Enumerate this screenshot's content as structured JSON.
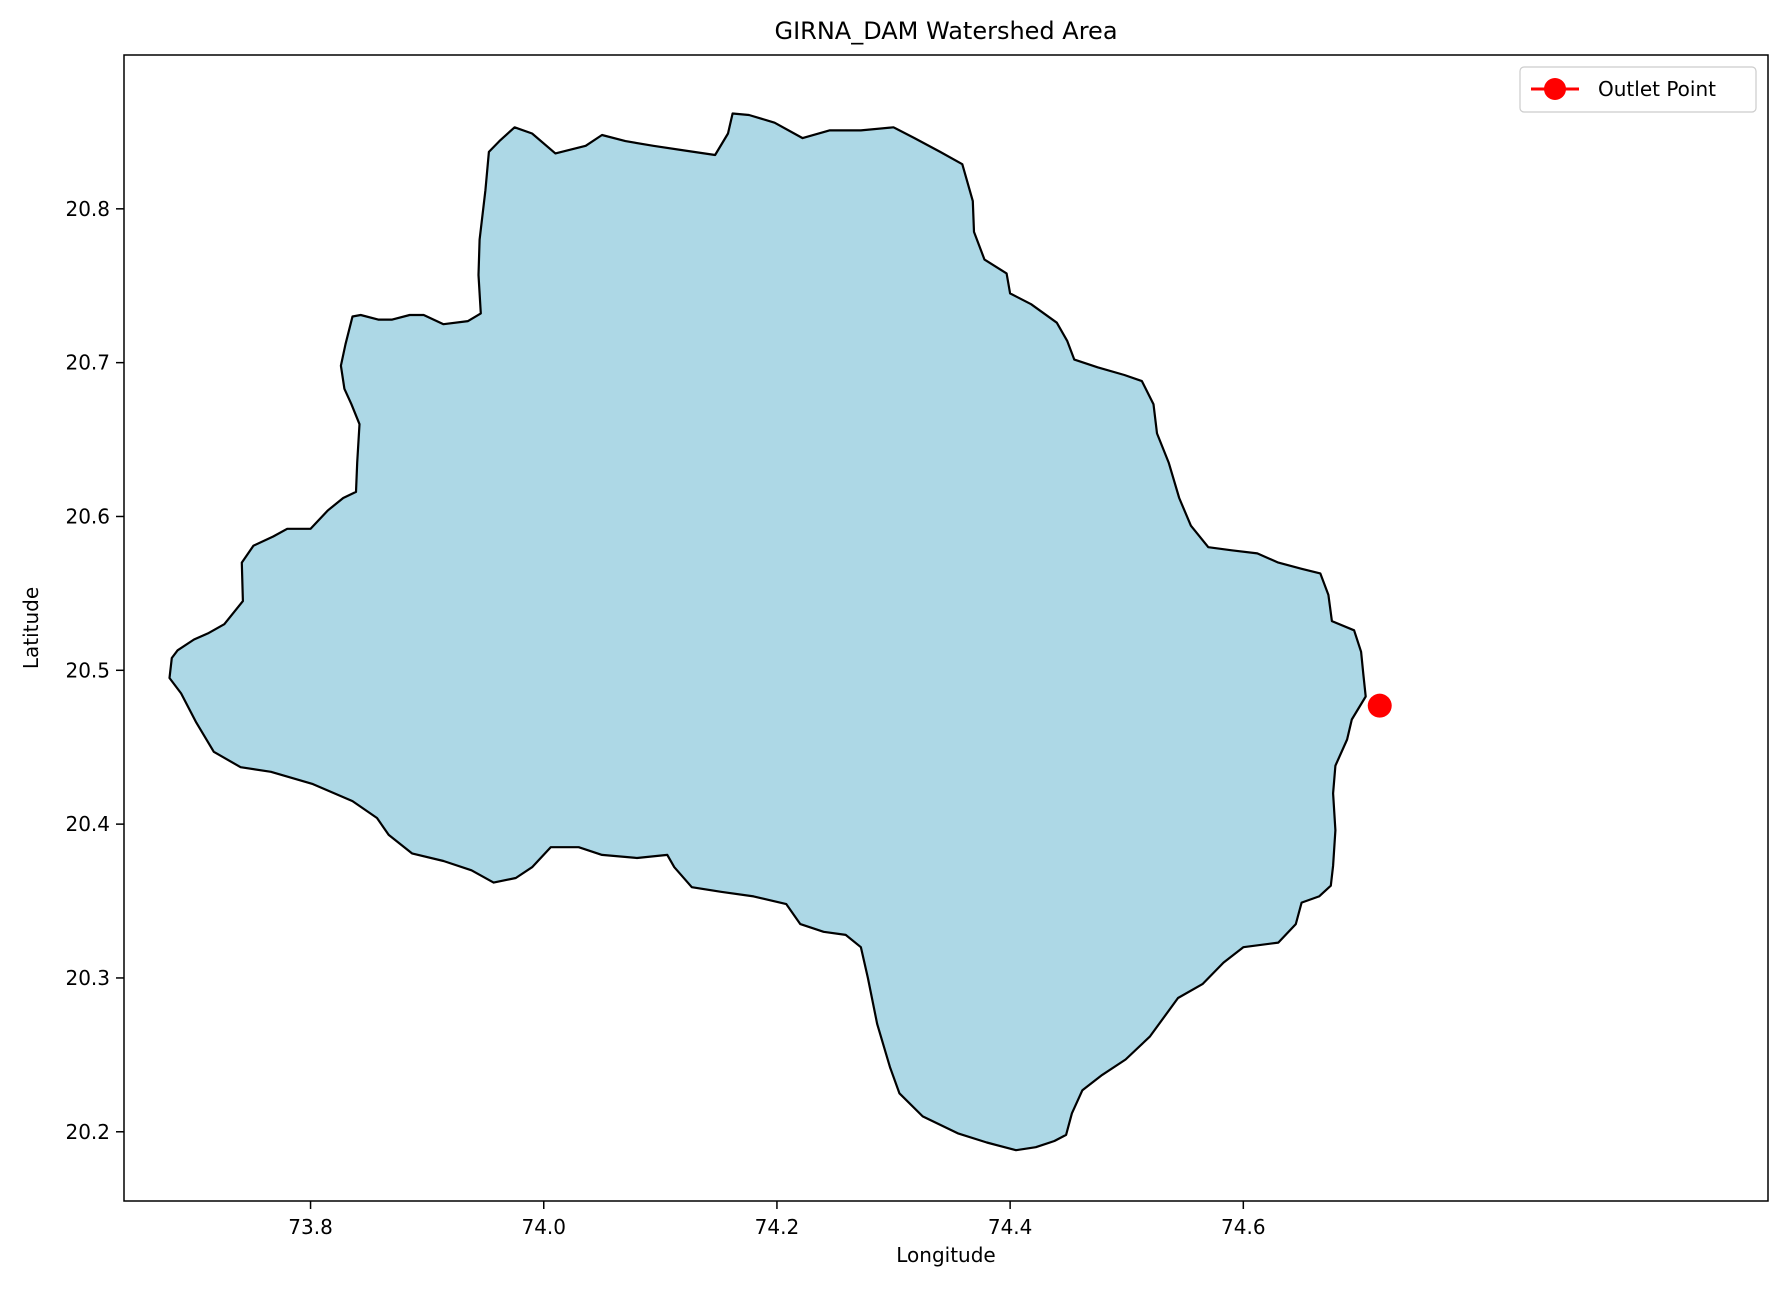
{
  "chart_data": {
    "type": "map",
    "title": "GIRNA_DAM Watershed Area",
    "xlabel": "Longitude",
    "ylabel": "Latitude",
    "xlim": [
      73.64,
      75.05
    ],
    "ylim": [
      20.155,
      20.9
    ],
    "xticks": [
      73.8,
      74.0,
      74.2,
      74.4,
      74.6
    ],
    "xtick_labels": [
      "73.8",
      "74.0",
      "74.2",
      "74.4",
      "74.6"
    ],
    "yticks": [
      20.2,
      20.3,
      20.4,
      20.5,
      20.6,
      20.7,
      20.8
    ],
    "ytick_labels": [
      "20.2",
      "20.3",
      "20.4",
      "20.5",
      "20.6",
      "20.7",
      "20.8"
    ],
    "grid": false,
    "legend_position": "upper right",
    "watershed": {
      "fill_color": "#add8e6",
      "edge_color": "#000000",
      "boundary": [
        [
          73.686,
          20.513
        ],
        [
          73.7,
          20.52
        ],
        [
          73.712,
          20.524
        ],
        [
          73.726,
          20.53
        ],
        [
          73.742,
          20.545
        ],
        [
          73.741,
          20.57
        ],
        [
          73.751,
          20.581
        ],
        [
          73.768,
          20.587
        ],
        [
          73.78,
          20.592
        ],
        [
          73.8,
          20.592
        ],
        [
          73.815,
          20.604
        ],
        [
          73.828,
          20.612
        ],
        [
          73.839,
          20.616
        ],
        [
          73.84,
          20.635
        ],
        [
          73.842,
          20.66
        ],
        [
          73.835,
          20.673
        ],
        [
          73.829,
          20.683
        ],
        [
          73.826,
          20.698
        ],
        [
          73.83,
          20.712
        ],
        [
          73.836,
          20.73
        ],
        [
          73.843,
          20.731
        ],
        [
          73.858,
          20.728
        ],
        [
          73.87,
          20.728
        ],
        [
          73.885,
          20.731
        ],
        [
          73.897,
          20.731
        ],
        [
          73.914,
          20.725
        ],
        [
          73.935,
          20.727
        ],
        [
          73.946,
          20.732
        ],
        [
          73.944,
          20.757
        ],
        [
          73.945,
          20.78
        ],
        [
          73.95,
          20.812
        ],
        [
          73.953,
          20.837
        ],
        [
          73.962,
          20.844
        ],
        [
          73.975,
          20.853
        ],
        [
          73.99,
          20.849
        ],
        [
          74.01,
          20.836
        ],
        [
          74.036,
          20.841
        ],
        [
          74.05,
          20.848
        ],
        [
          74.07,
          20.844
        ],
        [
          74.094,
          20.841
        ],
        [
          74.12,
          20.838
        ],
        [
          74.147,
          20.835
        ],
        [
          74.158,
          20.849
        ],
        [
          74.162,
          20.862
        ],
        [
          74.176,
          20.861
        ],
        [
          74.198,
          20.856
        ],
        [
          74.222,
          20.846
        ],
        [
          74.245,
          20.851
        ],
        [
          74.272,
          20.851
        ],
        [
          74.3,
          20.853
        ],
        [
          74.318,
          20.846
        ],
        [
          74.34,
          20.837
        ],
        [
          74.359,
          20.829
        ],
        [
          74.368,
          20.805
        ],
        [
          74.369,
          20.785
        ],
        [
          74.378,
          20.767
        ],
        [
          74.397,
          20.758
        ],
        [
          74.4,
          20.745
        ],
        [
          74.418,
          20.738
        ],
        [
          74.44,
          20.726
        ],
        [
          74.449,
          20.714
        ],
        [
          74.455,
          20.702
        ],
        [
          74.475,
          20.697
        ],
        [
          74.498,
          20.692
        ],
        [
          74.513,
          20.688
        ],
        [
          74.523,
          20.673
        ],
        [
          74.526,
          20.654
        ],
        [
          74.536,
          20.635
        ],
        [
          74.545,
          20.612
        ],
        [
          74.555,
          20.594
        ],
        [
          74.57,
          20.58
        ],
        [
          74.59,
          20.578
        ],
        [
          74.612,
          20.576
        ],
        [
          74.63,
          20.57
        ],
        [
          74.65,
          20.566
        ],
        [
          74.666,
          20.563
        ],
        [
          74.673,
          20.549
        ],
        [
          74.676,
          20.532
        ],
        [
          74.695,
          20.526
        ],
        [
          74.701,
          20.512
        ],
        [
          74.703,
          20.497
        ],
        [
          74.705,
          20.483
        ],
        [
          74.693,
          20.468
        ],
        [
          74.689,
          20.455
        ],
        [
          74.679,
          20.438
        ],
        [
          74.677,
          20.42
        ],
        [
          74.679,
          20.396
        ],
        [
          74.677,
          20.373
        ],
        [
          74.675,
          20.36
        ],
        [
          74.665,
          20.353
        ],
        [
          74.65,
          20.349
        ],
        [
          74.645,
          20.335
        ],
        [
          74.63,
          20.323
        ],
        [
          74.6,
          20.32
        ],
        [
          74.583,
          20.31
        ],
        [
          74.565,
          20.296
        ],
        [
          74.544,
          20.287
        ],
        [
          74.52,
          20.262
        ],
        [
          74.499,
          20.247
        ],
        [
          74.479,
          20.237
        ],
        [
          74.462,
          20.227
        ],
        [
          74.453,
          20.212
        ],
        [
          74.448,
          20.198
        ],
        [
          74.438,
          20.194
        ],
        [
          74.422,
          20.19
        ],
        [
          74.405,
          20.188
        ],
        [
          74.38,
          20.193
        ],
        [
          74.355,
          20.199
        ],
        [
          74.325,
          20.21
        ],
        [
          74.305,
          20.225
        ],
        [
          74.297,
          20.242
        ],
        [
          74.286,
          20.27
        ],
        [
          74.278,
          20.3
        ],
        [
          74.272,
          20.32
        ],
        [
          74.259,
          20.328
        ],
        [
          74.24,
          20.33
        ],
        [
          74.22,
          20.335
        ],
        [
          74.208,
          20.348
        ],
        [
          74.18,
          20.353
        ],
        [
          74.152,
          20.356
        ],
        [
          74.127,
          20.359
        ],
        [
          74.112,
          20.372
        ],
        [
          74.106,
          20.38
        ],
        [
          74.08,
          20.378
        ],
        [
          74.05,
          20.38
        ],
        [
          74.03,
          20.385
        ],
        [
          74.006,
          20.385
        ],
        [
          73.99,
          20.372
        ],
        [
          73.976,
          20.365
        ],
        [
          73.957,
          20.362
        ],
        [
          73.938,
          20.37
        ],
        [
          73.914,
          20.376
        ],
        [
          73.887,
          20.381
        ],
        [
          73.867,
          20.393
        ],
        [
          73.857,
          20.404
        ],
        [
          73.836,
          20.415
        ],
        [
          73.802,
          20.426
        ],
        [
          73.766,
          20.434
        ],
        [
          73.74,
          20.437
        ],
        [
          73.717,
          20.447
        ],
        [
          73.702,
          20.466
        ],
        [
          73.689,
          20.485
        ],
        [
          73.679,
          20.495
        ],
        [
          73.681,
          20.508
        ]
      ]
    },
    "outlet_point": {
      "label": "Outlet Point",
      "lon": 74.717,
      "lat": 20.477,
      "color": "#ff0000"
    }
  }
}
